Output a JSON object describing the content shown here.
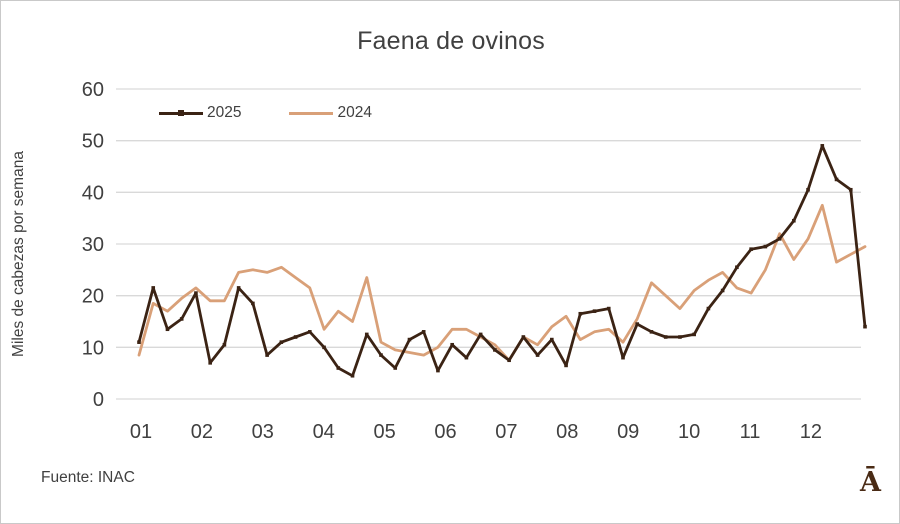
{
  "title": "Faena de ovinos",
  "footer": {
    "source": "Fuente: INAC"
  },
  "logo_glyph": "Ā",
  "colors": {
    "series_2025": "#3B2314",
    "series_2024": "#D9A078",
    "gridline": "#D9D9D9",
    "text": "#404040",
    "background": "#FFFFFF"
  },
  "chart_data": {
    "type": "line",
    "title": "Faena de ovinos",
    "xlabel": "",
    "ylabel": "Miles de cabezas por semana",
    "ylim": [
      0,
      60
    ],
    "y_ticks": [
      0,
      10,
      20,
      30,
      40,
      50,
      60
    ],
    "x_tick_labels": [
      "01",
      "02",
      "03",
      "04",
      "05",
      "06",
      "07",
      "08",
      "09",
      "10",
      "11",
      "12"
    ],
    "x_unit": "week-of-year",
    "grid": true,
    "legend_position": "top-left-inside",
    "series": [
      {
        "name": "2025",
        "color": "#3B2314",
        "marker": "square",
        "values": [
          11,
          21.5,
          13.5,
          15.5,
          20.5,
          7,
          10.5,
          21.5,
          18.5,
          8.5,
          11,
          12,
          13,
          10,
          6,
          4.5,
          12.5,
          8.5,
          6,
          11.5,
          13,
          5.5,
          10.5,
          8,
          12.5,
          9.5,
          7.5,
          12,
          8.5,
          11.5,
          6.5,
          16.5,
          17,
          17.5,
          8,
          14.5,
          13,
          12,
          12,
          12.5,
          17.5,
          21,
          25.5,
          29,
          29.5,
          31,
          34.5,
          40.5,
          49,
          42.5,
          40.5,
          14
        ]
      },
      {
        "name": "2024",
        "color": "#D9A078",
        "marker": "none",
        "values": [
          8.5,
          18.5,
          17,
          19.5,
          21.5,
          19,
          19,
          24.5,
          25,
          24.5,
          25.5,
          23.5,
          21.5,
          13.5,
          17,
          15,
          23.5,
          11,
          9.5,
          9,
          8.5,
          10,
          13.5,
          13.5,
          12,
          10.5,
          7.5,
          12,
          10.5,
          14,
          16,
          11.5,
          13,
          13.5,
          11,
          15.5,
          22.5,
          20,
          17.5,
          21,
          23,
          24.5,
          21.5,
          20.5,
          25,
          32,
          27,
          31,
          37.5,
          26.5,
          28,
          29.5
        ]
      }
    ]
  }
}
